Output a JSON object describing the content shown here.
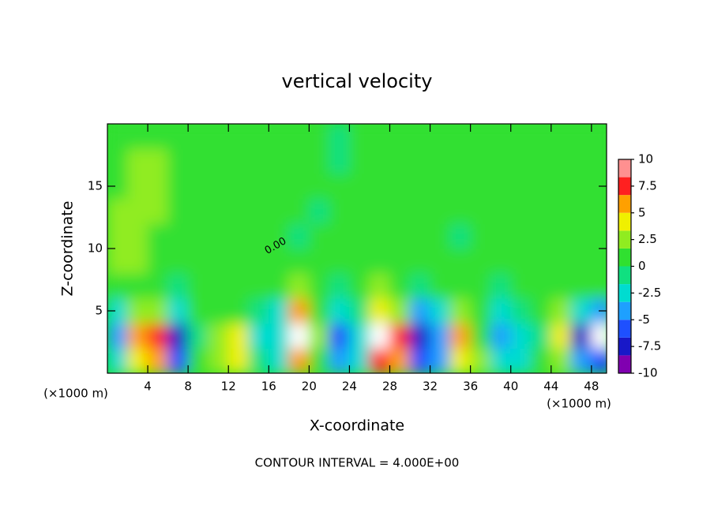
{
  "chart_data": {
    "type": "contour",
    "title": "vertical velocity",
    "x_label": "X-coordinate",
    "y_label": "Z-coordinate",
    "x_unit_label": "(×1000 m)",
    "y_unit_label": "(×1000 m)",
    "annotation": "CONTOUR INTERVAL = 4.000E+00",
    "contour_label": "0.00",
    "xlim": [
      0,
      49.5
    ],
    "ylim": [
      0,
      20
    ],
    "xticks": [
      4,
      8,
      12,
      16,
      20,
      24,
      28,
      32,
      36,
      40,
      44,
      48
    ],
    "yticks": [
      5,
      10,
      15
    ],
    "zlim": [
      -10,
      10
    ],
    "zticks": [
      -10,
      -7.5,
      -5,
      -2.5,
      0,
      2.5,
      5,
      7.5,
      10
    ],
    "colors": [
      "#8000b0",
      "#1818c8",
      "#1e50ff",
      "#1ea0ff",
      "#00dcd0",
      "#10e080",
      "#30e030",
      "#90ec20",
      "#f0f000",
      "#ffa000",
      "#ff2020",
      "#ff9090"
    ],
    "x": [
      1,
      3,
      5,
      7,
      9,
      11,
      13,
      15,
      17,
      19,
      21,
      23,
      25,
      27,
      29,
      31,
      33,
      35,
      37,
      39,
      41,
      43,
      45,
      47,
      49
    ],
    "z": [
      1,
      3,
      5,
      7,
      9,
      11,
      13,
      15,
      17,
      19
    ],
    "values": [
      [
        -3,
        4,
        6,
        -6,
        0,
        3,
        4,
        -1,
        -2,
        6,
        0,
        -5,
        -2,
        8,
        6,
        -6,
        -4,
        4,
        2,
        -3,
        -2,
        0,
        2,
        -5,
        -6
      ],
      [
        -4,
        5,
        8,
        -7,
        -1,
        2,
        4,
        -2,
        -3,
        11,
        2,
        -6,
        -2,
        12,
        8,
        -8,
        -5,
        5,
        1,
        -4,
        -3,
        -1,
        4,
        -7,
        -12
      ],
      [
        -2,
        2,
        2,
        -3,
        0,
        1,
        1,
        -1,
        -2,
        5,
        1,
        -3,
        -1,
        4,
        3,
        -4,
        -2,
        2,
        0,
        -2,
        -1,
        0,
        2,
        -2,
        -4
      ],
      [
        1,
        1,
        0,
        -1,
        1,
        0,
        0,
        0,
        1,
        3,
        1,
        -1,
        0,
        2,
        1,
        -1,
        0,
        1,
        0,
        -1,
        0,
        1,
        1,
        0,
        0
      ],
      [
        2,
        2,
        1,
        0,
        1,
        1,
        0,
        0,
        1,
        0,
        0,
        1,
        1,
        1,
        0,
        0,
        1,
        0,
        0,
        0,
        0,
        0,
        1,
        1,
        0
      ],
      [
        2,
        2,
        1,
        1,
        1,
        1,
        0,
        0,
        0,
        -1,
        0,
        0,
        0,
        0,
        1,
        0,
        0,
        -1,
        0,
        0,
        0,
        1,
        1,
        0,
        1
      ],
      [
        2,
        3,
        2,
        1,
        1,
        1,
        1,
        0,
        0,
        0,
        -1,
        0,
        0,
        0,
        1,
        1,
        1,
        0,
        0,
        0,
        1,
        1,
        1,
        1,
        1
      ],
      [
        1,
        3,
        2,
        1,
        1,
        1,
        1,
        1,
        0,
        0,
        0,
        0,
        0,
        0,
        1,
        1,
        1,
        1,
        1,
        1,
        1,
        1,
        0,
        1,
        1
      ],
      [
        1,
        2,
        2,
        1,
        1,
        1,
        1,
        1,
        1,
        0,
        0,
        -1,
        0,
        0,
        0,
        1,
        1,
        1,
        0,
        1,
        1,
        1,
        1,
        1,
        1
      ],
      [
        1,
        1,
        1,
        1,
        1,
        1,
        0,
        0,
        0,
        0,
        0,
        -1,
        0,
        0,
        0,
        0,
        0,
        0,
        0,
        0,
        0,
        0,
        1,
        1,
        1
      ]
    ]
  }
}
